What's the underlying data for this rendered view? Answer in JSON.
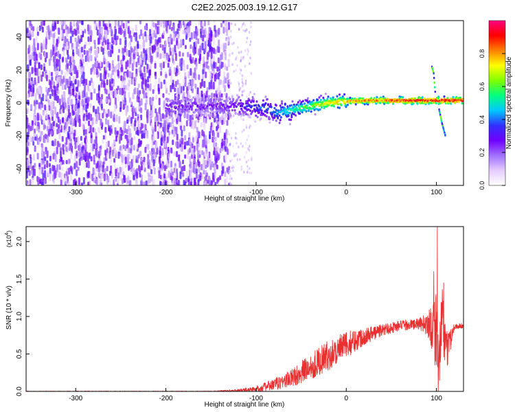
{
  "figure": {
    "title": "C2E2.2025.003.19.12.G17"
  },
  "chart_data": [
    {
      "type": "heatmap",
      "xlabel": "Height of straight line (km)",
      "ylabel": "Frequency (Hz)",
      "xlim": [
        -355,
        130
      ],
      "ylim": [
        -50,
        50
      ],
      "xticks": [
        -300,
        -200,
        -100,
        0,
        100
      ],
      "xtick_labels": [
        "-300",
        "-200",
        "-100",
        "0",
        "100"
      ],
      "yticks": [
        -40,
        -20,
        0,
        20,
        40
      ],
      "ytick_labels": [
        "-40",
        "-20",
        "0",
        "20",
        "40"
      ],
      "colorbar": {
        "label": "Normalized spectral amplitude",
        "range": [
          0,
          1
        ],
        "ticks": [
          0.0,
          0.2,
          0.4,
          0.6,
          0.8
        ],
        "tick_labels": [
          "0.0",
          "0.2",
          "0.4",
          "0.6",
          "0.8"
        ],
        "colors": [
          "#ffffff",
          "#e6ccff",
          "#a070ff",
          "#7000ff",
          "#3030ff",
          "#00c8ff",
          "#00ff80",
          "#80ff00",
          "#ffff00",
          "#ff8000",
          "#ff0000",
          "#ff0080"
        ]
      },
      "trace": {
        "x": [
          -130,
          -110,
          -90,
          -75,
          -60,
          -40,
          -20,
          0,
          20,
          50,
          80,
          95,
          100,
          110,
          130
        ],
        "freq": [
          -2,
          -2,
          -3,
          -6,
          -4,
          -2,
          0,
          1,
          1.5,
          1.5,
          1.5,
          1.5,
          1.5,
          1.5,
          1.5
        ],
        "amplitude": [
          0.25,
          0.35,
          0.4,
          0.45,
          0.55,
          0.65,
          0.75,
          0.8,
          0.85,
          0.9,
          0.95,
          0.95,
          0.95,
          0.95,
          0.95
        ]
      },
      "noise_region": {
        "x": [
          -355,
          -130
        ],
        "freq": [
          -50,
          50
        ]
      },
      "branches": [
        {
          "x": [
            95,
            97,
            99
          ],
          "freq": [
            22,
            18,
            4
          ]
        },
        {
          "x": [
            103,
            106,
            110
          ],
          "freq": [
            -4,
            -12,
            -20
          ]
        }
      ],
      "grid": false,
      "legend": "none"
    },
    {
      "type": "line",
      "xlabel": "Height of straight line (km)",
      "ylabel": "SNR (10 * v/v)",
      "y_multiplier": "(x10^4)",
      "xlim": [
        -355,
        130
      ],
      "ylim": [
        0,
        2.2
      ],
      "xticks": [
        -300,
        -200,
        -100,
        0,
        100
      ],
      "xtick_labels": [
        "-300",
        "-200",
        "-100",
        "0",
        "100"
      ],
      "yticks": [
        0.0,
        0.5,
        1.0,
        1.5,
        2.0
      ],
      "ytick_labels": [
        "0.0",
        "0.5",
        "1.0",
        "1.5",
        "2.0"
      ],
      "series": [
        {
          "color": "#e83030",
          "x": [
            -355,
            -300,
            -200,
            -150,
            -120,
            -100,
            -80,
            -60,
            -40,
            -20,
            0,
            20,
            40,
            60,
            80,
            90,
            95,
            100,
            103,
            106,
            110,
            120,
            130
          ],
          "mean": [
            0.0,
            0.0,
            0.0,
            0.0,
            0.01,
            0.03,
            0.09,
            0.18,
            0.33,
            0.48,
            0.62,
            0.74,
            0.82,
            0.88,
            0.9,
            0.9,
            0.88,
            0.85,
            0.2,
            1.1,
            0.5,
            0.87,
            0.87
          ],
          "spread": [
            0.005,
            0.005,
            0.005,
            0.005,
            0.02,
            0.04,
            0.08,
            0.12,
            0.18,
            0.2,
            0.18,
            0.12,
            0.08,
            0.07,
            0.07,
            0.15,
            0.35,
            0.6,
            0.4,
            0.5,
            0.3,
            0.04,
            0.04
          ]
        }
      ],
      "peaks": [
        {
          "x": 101,
          "y": 2.2
        },
        {
          "x": 97,
          "y": 1.6
        },
        {
          "x": 108,
          "y": 1.45
        }
      ],
      "grid": false,
      "legend": "none"
    }
  ]
}
